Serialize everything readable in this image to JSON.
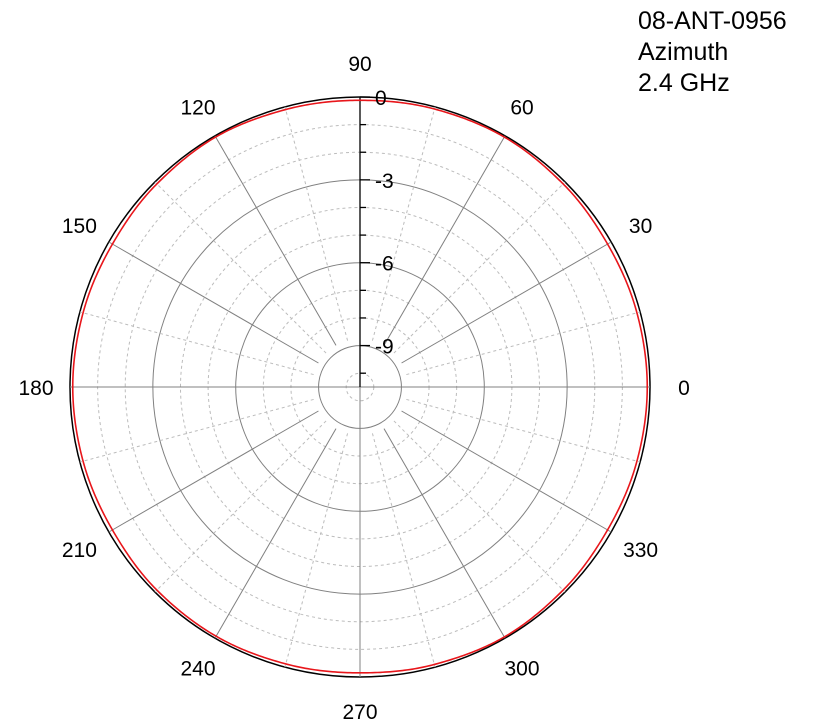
{
  "chart_data": {
    "type": "polar-line",
    "title_lines": [
      "08-ANT-0956",
      "Azimuth",
      "2.4 GHz"
    ],
    "angle_unit": "degrees",
    "angle_ticks": [
      0,
      30,
      60,
      90,
      120,
      150,
      180,
      210,
      240,
      270,
      300,
      330
    ],
    "radial_unit": "dB",
    "radial_ticks": [
      0,
      -3,
      -6,
      -9
    ],
    "rlim": [
      -10.5,
      0
    ],
    "grid": true,
    "series": [
      {
        "color": "#e8161b",
        "angles": [
          0,
          15,
          30,
          45,
          60,
          75,
          90,
          105,
          120,
          135,
          150,
          165,
          180,
          195,
          210,
          225,
          240,
          255,
          270,
          285,
          300,
          315,
          330,
          345,
          360
        ],
        "values": [
          -0.1,
          -0.12,
          -0.15,
          -0.1,
          -0.05,
          -0.08,
          -0.12,
          -0.1,
          -0.05,
          -0.1,
          -0.15,
          -0.12,
          -0.1,
          -0.12,
          -0.15,
          -0.1,
          -0.08,
          -0.12,
          -0.15,
          -0.1,
          -0.05,
          -0.1,
          -0.15,
          -0.12,
          -0.1
        ]
      }
    ]
  },
  "colors": {
    "background": "#ffffff",
    "grid_major": "#808080",
    "grid_minor": "#bcbcbc",
    "outer_circle": "#000000",
    "axis": "#000000",
    "text": "#000000",
    "series": "#e8161b"
  }
}
